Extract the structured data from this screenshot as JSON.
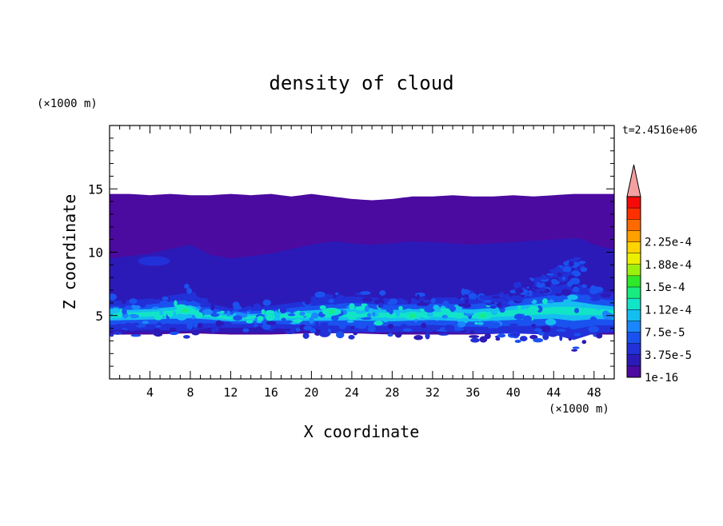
{
  "chart_data": {
    "type": "heatmap",
    "title": "density of cloud",
    "xlabel": "X coordinate",
    "ylabel": "Z coordinate",
    "x_unit": "(×1000 m)",
    "y_unit": "(×1000 m)",
    "time_label": "t=2.4516e+06",
    "xlim": [
      0,
      50
    ],
    "ylim": [
      0,
      20
    ],
    "x_ticks": [
      4,
      8,
      12,
      16,
      20,
      24,
      28,
      32,
      36,
      40,
      44,
      48
    ],
    "y_ticks": [
      5,
      10,
      15
    ],
    "colorbar": {
      "labels": [
        "1e-16",
        "3.75e-5",
        "7.5e-5",
        "1.12e-4",
        "1.5e-4",
        "1.88e-4",
        "2.25e-4"
      ],
      "colors": [
        "#4b0aa0",
        "#2c1ab8",
        "#2230d8",
        "#1a52f0",
        "#1a86ff",
        "#14bef0",
        "#12e4c8",
        "#18ec80",
        "#2ee82a",
        "#9cf010",
        "#ecf000",
        "#ffd400",
        "#ffa000",
        "#ff6a00",
        "#ff3000",
        "#f50a0a"
      ],
      "extend_color": "#f4a0a0"
    },
    "cloud_top": [
      [
        0,
        14.6
      ],
      [
        2,
        14.6
      ],
      [
        4,
        14.5
      ],
      [
        6,
        14.6
      ],
      [
        8,
        14.5
      ],
      [
        10,
        14.5
      ],
      [
        12,
        14.6
      ],
      [
        14,
        14.5
      ],
      [
        16,
        14.6
      ],
      [
        18,
        14.4
      ],
      [
        20,
        14.6
      ],
      [
        22,
        14.4
      ],
      [
        24,
        14.2
      ],
      [
        26,
        14.1
      ],
      [
        28,
        14.2
      ],
      [
        30,
        14.4
      ],
      [
        32,
        14.4
      ],
      [
        34,
        14.5
      ],
      [
        36,
        14.4
      ],
      [
        38,
        14.4
      ],
      [
        40,
        14.5
      ],
      [
        42,
        14.4
      ],
      [
        44,
        14.5
      ],
      [
        46,
        14.6
      ],
      [
        48,
        14.6
      ],
      [
        50,
        14.6
      ]
    ],
    "cloud_base": [
      [
        0,
        3.5
      ],
      [
        4,
        3.5
      ],
      [
        8,
        3.6
      ],
      [
        12,
        3.5
      ],
      [
        16,
        3.5
      ],
      [
        20,
        3.6
      ],
      [
        24,
        3.6
      ],
      [
        28,
        3.5
      ],
      [
        32,
        3.5
      ],
      [
        36,
        3.5
      ],
      [
        40,
        3.6
      ],
      [
        44,
        3.5
      ],
      [
        48,
        3.5
      ],
      [
        50,
        3.5
      ]
    ],
    "dense_layer": {
      "center": [
        [
          0,
          5.0
        ],
        [
          4,
          5.1
        ],
        [
          8,
          5.3
        ],
        [
          10,
          5.0
        ],
        [
          12,
          4.8
        ],
        [
          16,
          4.9
        ],
        [
          20,
          5.0
        ],
        [
          24,
          5.1
        ],
        [
          28,
          5.0
        ],
        [
          32,
          5.1
        ],
        [
          36,
          5.0
        ],
        [
          40,
          5.2
        ],
        [
          44,
          5.4
        ],
        [
          48,
          5.3
        ],
        [
          50,
          5.2
        ]
      ],
      "thickness": [
        [
          0,
          1.2
        ],
        [
          4,
          1.3
        ],
        [
          8,
          1.6
        ],
        [
          10,
          1.0
        ],
        [
          12,
          0.8
        ],
        [
          16,
          0.9
        ],
        [
          20,
          1.3
        ],
        [
          24,
          1.5
        ],
        [
          28,
          1.4
        ],
        [
          32,
          1.4
        ],
        [
          36,
          1.5
        ],
        [
          40,
          1.7
        ],
        [
          44,
          2.0
        ],
        [
          46,
          2.4
        ],
        [
          48,
          1.8
        ],
        [
          50,
          1.6
        ]
      ]
    },
    "hotspots": [
      [
        7.5,
        5.4
      ],
      [
        22,
        5.3
      ],
      [
        30,
        5.0
      ],
      [
        37,
        5.0
      ]
    ]
  }
}
